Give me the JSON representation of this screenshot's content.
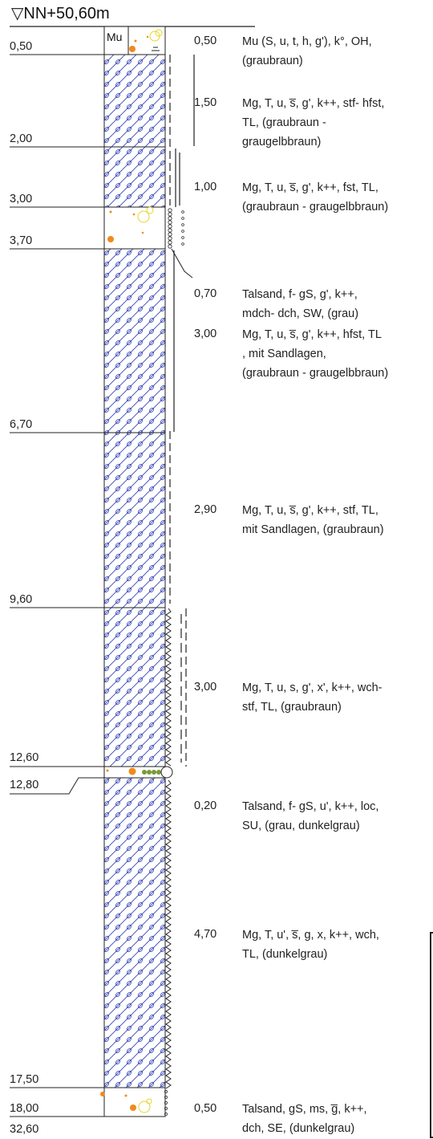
{
  "header": {
    "level": "NN+50,60m",
    "level_symbol": "▽"
  },
  "depth_labels": [
    "0,50",
    "2,00",
    "3,00",
    "3,70",
    "6,70",
    "9,60",
    "12,60",
    "12,80",
    "17,50",
    "18,00",
    "32,60"
  ],
  "soil_code": "Mu",
  "layers": [
    {
      "thickness": "0,50",
      "lines": [
        "Mu (S, u, t, h, g'), k°, OH,",
        "(graubraun)"
      ]
    },
    {
      "thickness": "1,50",
      "lines": [
        "Mg, T, u, s̅, g', k++, stf- hfst,",
        "TL, (graubraun -",
        "graugelbbraun)"
      ]
    },
    {
      "thickness": "1,00",
      "lines": [
        "Mg, T, u, s̅, g', k++, fst, TL,",
        "(graubraun - graugelbbraun)"
      ]
    },
    {
      "thickness": "0,70",
      "lines": [
        "Talsand, f- gS, g', k++,",
        "mdch- dch, SW, (grau)"
      ]
    },
    {
      "thickness": "3,00",
      "lines": [
        "Mg, T, u, s̅, g', k++, hfst, TL",
        ", mit Sandlagen,",
        "(graubraun - graugelbbraun)"
      ]
    },
    {
      "thickness": "2,90",
      "lines": [
        "Mg, T, u, s̅, g', k++, stf, TL,",
        "mit Sandlagen, (graubraun)"
      ]
    },
    {
      "thickness": "3,00",
      "lines": [
        "Mg, T, u, s, g', x', k++, wch-",
        "stf, TL, (graubraun)"
      ]
    },
    {
      "thickness": "0,20",
      "lines": [
        "Talsand, f- gS, u', k++, loc,",
        "SU, (grau, dunkelgrau)"
      ]
    },
    {
      "thickness": "4,70",
      "lines": [
        "Mg, T, u', s̅, g, x, k++, wch,",
        "TL, (dunkelgrau)"
      ]
    },
    {
      "thickness": "0,50",
      "lines": [
        "Talsand, gS, ms, g̅, k++,",
        "dch, SE, (dunkelgrau)"
      ]
    }
  ],
  "colors": {
    "hatch": "#3a49b8",
    "line": "#222222",
    "dots": "#f08a1c",
    "circles": "#e8d42a"
  }
}
